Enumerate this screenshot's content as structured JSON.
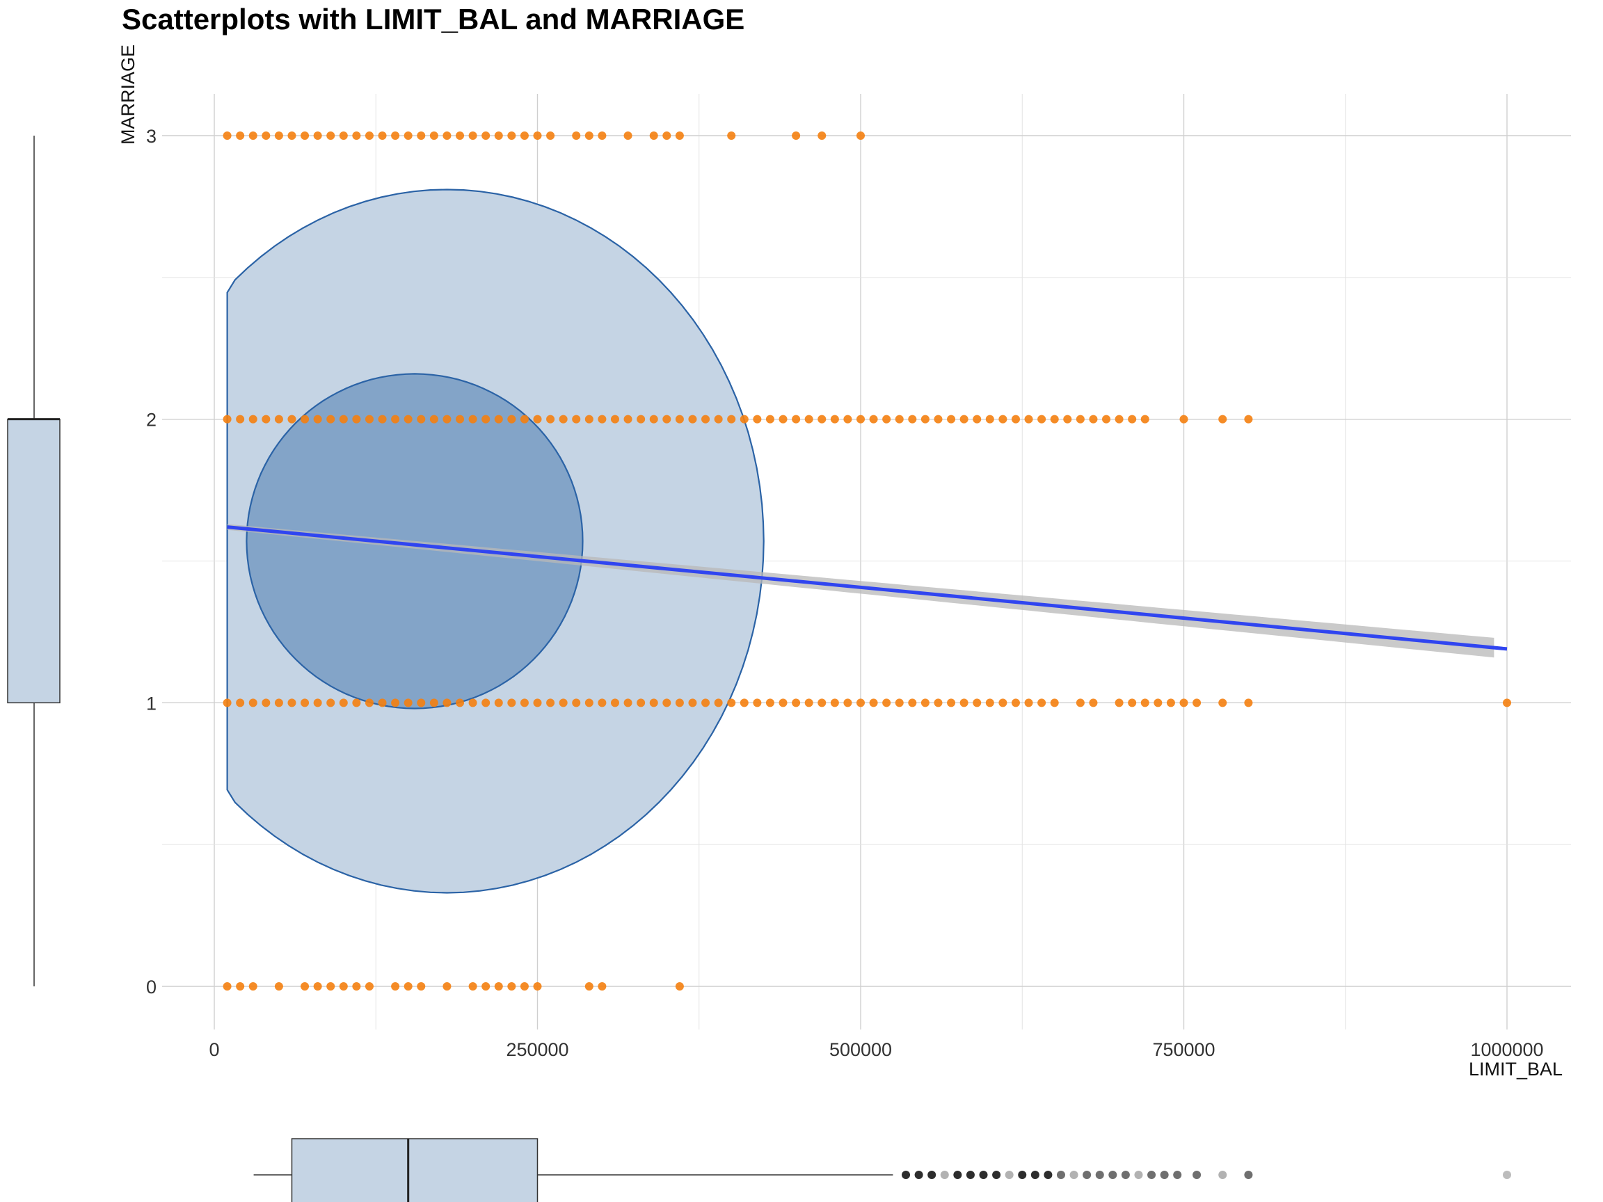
{
  "chart_data": {
    "type": "scatter",
    "title": "Scatterplots with LIMIT_BAL and MARRIAGE",
    "xlabel": "LIMIT_BAL",
    "ylabel": "MARRIAGE",
    "xlim": [
      -40000,
      1050000
    ],
    "ylim": [
      -0.15,
      3.15
    ],
    "x_ticks": [
      0,
      250000,
      500000,
      750000,
      1000000
    ],
    "x_tick_labels": [
      "0",
      "250000",
      "500000",
      "750000",
      "1000000"
    ],
    "y_ticks": [
      0,
      1,
      2,
      3
    ],
    "y_tick_labels": [
      "0",
      "1",
      "2",
      "3"
    ],
    "grid": true,
    "legend": "none",
    "colors": {
      "points": "#f47f0f",
      "trend_line": "#3045f0",
      "confidence_band": "#b8b8b8",
      "ellipse_outline": "#2b63a6",
      "ellipse_outer_fill": "#c5d4e4",
      "ellipse_inner_fill": "#7fa1c6",
      "box_fill": "#c5d4e4",
      "outlier_points": "#222222"
    },
    "series": [
      {
        "y": 3,
        "x": [
          10000,
          20000,
          30000,
          40000,
          50000,
          60000,
          70000,
          80000,
          90000,
          100000,
          110000,
          120000,
          130000,
          140000,
          150000,
          160000,
          170000,
          180000,
          190000,
          200000,
          210000,
          220000,
          230000,
          240000,
          250000,
          260000,
          280000,
          290000,
          300000,
          320000,
          340000,
          350000,
          360000,
          400000,
          450000,
          470000,
          500000
        ]
      },
      {
        "y": 2,
        "x": [
          10000,
          20000,
          30000,
          40000,
          50000,
          60000,
          70000,
          80000,
          90000,
          100000,
          110000,
          120000,
          130000,
          140000,
          150000,
          160000,
          170000,
          180000,
          190000,
          200000,
          210000,
          220000,
          230000,
          240000,
          250000,
          260000,
          270000,
          280000,
          290000,
          300000,
          310000,
          320000,
          330000,
          340000,
          350000,
          360000,
          370000,
          380000,
          390000,
          400000,
          410000,
          420000,
          430000,
          440000,
          450000,
          460000,
          470000,
          480000,
          490000,
          500000,
          510000,
          520000,
          530000,
          540000,
          550000,
          560000,
          570000,
          580000,
          590000,
          600000,
          610000,
          620000,
          630000,
          640000,
          650000,
          660000,
          670000,
          680000,
          690000,
          700000,
          710000,
          720000,
          750000,
          780000,
          800000
        ]
      },
      {
        "y": 1,
        "x": [
          10000,
          20000,
          30000,
          40000,
          50000,
          60000,
          70000,
          80000,
          90000,
          100000,
          110000,
          120000,
          130000,
          140000,
          150000,
          160000,
          170000,
          180000,
          190000,
          200000,
          210000,
          220000,
          230000,
          240000,
          250000,
          260000,
          270000,
          280000,
          290000,
          300000,
          310000,
          320000,
          330000,
          340000,
          350000,
          360000,
          370000,
          380000,
          390000,
          400000,
          410000,
          420000,
          430000,
          440000,
          450000,
          460000,
          470000,
          480000,
          490000,
          500000,
          510000,
          520000,
          530000,
          540000,
          550000,
          560000,
          570000,
          580000,
          590000,
          600000,
          610000,
          620000,
          630000,
          640000,
          650000,
          670000,
          680000,
          700000,
          710000,
          720000,
          730000,
          740000,
          750000,
          760000,
          780000,
          800000,
          1000000
        ]
      },
      {
        "y": 0,
        "x": [
          10000,
          20000,
          30000,
          50000,
          70000,
          80000,
          90000,
          100000,
          110000,
          120000,
          140000,
          150000,
          160000,
          180000,
          200000,
          210000,
          220000,
          230000,
          240000,
          250000,
          290000,
          300000,
          360000
        ]
      }
    ],
    "trend_line": {
      "x": [
        10000,
        1000000
      ],
      "y": [
        1.62,
        1.19
      ],
      "band_halfwidth": [
        0.01,
        0.035
      ]
    },
    "ellipses": [
      {
        "level": "outer",
        "cx": 180000,
        "cy": 1.57,
        "rx": 245000,
        "ry": 1.24
      },
      {
        "level": "inner",
        "cx": 155000,
        "cy": 1.57,
        "rx": 130000,
        "ry": 0.59
      }
    ],
    "marginal_box_y": {
      "min": 0,
      "q1": 1,
      "median": 2,
      "q3": 2,
      "max": 3
    },
    "marginal_box_x": {
      "min": 10000,
      "q1": 60000,
      "median": 150000,
      "q3": 250000,
      "whisker_high": 525000,
      "outliers": [
        535000,
        545000,
        555000,
        565000,
        575000,
        585000,
        595000,
        605000,
        615000,
        625000,
        635000,
        645000,
        655000,
        665000,
        675000,
        685000,
        695000,
        705000,
        715000,
        725000,
        735000,
        745000,
        760000,
        780000,
        800000,
        1000000
      ]
    }
  }
}
